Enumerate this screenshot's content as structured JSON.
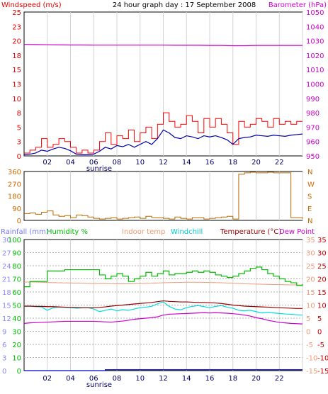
{
  "chart_data": [
    {
      "type": "line",
      "panel": "wind-pressure",
      "title": "24 hour graph day : 17 September 2008",
      "left_label": "Windspeed (m/s)",
      "right_label": "Barometer (hPa)",
      "x_ticks": [
        "02",
        "04",
        "06",
        "08",
        "10",
        "12",
        "14",
        "16",
        "18",
        "20",
        "22"
      ],
      "x_note": "sunrise",
      "y_left_ticks": [
        "0",
        "3",
        "5",
        "8",
        "10",
        "13",
        "15",
        "18",
        "20",
        "23",
        "25"
      ],
      "y_left_range": [
        0,
        25
      ],
      "y_right_ticks": [
        "950",
        "960",
        "970",
        "980",
        "990",
        "1000",
        "1010",
        "1020",
        "1030",
        "1040",
        "1050"
      ],
      "y_right_range": [
        950,
        1050
      ],
      "colors": {
        "left_label": "#dd0000",
        "right_label": "#cc00cc",
        "gust": "#ff0000",
        "wind": "#0000aa",
        "barometer": "#cc00cc"
      },
      "series": [
        {
          "name": "Barometer",
          "axis": "right",
          "x": [
            0.0,
            1.0,
            2.0,
            3.0,
            4.0,
            5.0,
            6.0,
            7.0,
            8.0,
            9.0,
            10.0,
            11.0,
            12.0,
            13.0,
            14.0,
            15.0,
            16.0,
            17.0,
            18.0,
            19.0,
            20.0,
            21.0,
            22.0,
            23.0,
            24.0
          ],
          "values": [
            1027.5,
            1027.4,
            1027.3,
            1027.2,
            1027.1,
            1027.1,
            1027.0,
            1027.0,
            1027.0,
            1027.0,
            1027.0,
            1027.0,
            1027.0,
            1026.9,
            1026.9,
            1026.9,
            1026.8,
            1026.8,
            1026.6,
            1026.6,
            1026.8,
            1026.8,
            1026.8,
            1026.8,
            1026.8
          ]
        },
        {
          "name": "Wind gust",
          "axis": "left",
          "x": [
            0.0,
            0.5,
            1.0,
            1.5,
            2.0,
            2.5,
            3.0,
            3.5,
            4.0,
            4.5,
            5.0,
            5.5,
            6.0,
            6.5,
            7.0,
            7.5,
            8.0,
            8.5,
            9.0,
            9.5,
            10.0,
            10.5,
            11.0,
            11.5,
            12.0,
            12.5,
            13.0,
            13.5,
            14.0,
            14.5,
            15.0,
            15.5,
            16.0,
            16.5,
            17.0,
            17.5,
            18.0,
            18.5,
            19.0,
            19.5,
            20.0,
            20.5,
            21.0,
            21.5,
            22.0,
            22.5,
            23.0,
            23.5,
            24.0
          ],
          "values": [
            0.5,
            1.0,
            1.5,
            3.0,
            1.5,
            2.0,
            3.0,
            2.5,
            1.5,
            0.5,
            1.0,
            0.5,
            1.0,
            2.5,
            4.0,
            2.0,
            3.5,
            3.0,
            4.5,
            2.5,
            4.0,
            5.0,
            3.0,
            5.5,
            7.5,
            6.0,
            5.0,
            5.5,
            7.0,
            6.0,
            4.0,
            6.5,
            5.0,
            6.5,
            5.5,
            4.0,
            2.0,
            6.0,
            5.0,
            5.5,
            6.5,
            6.0,
            5.0,
            6.5,
            5.5,
            6.0,
            5.5,
            6.0,
            6.0
          ]
        },
        {
          "name": "Wind average",
          "axis": "left",
          "x": [
            0.0,
            0.5,
            1.0,
            1.5,
            2.0,
            2.5,
            3.0,
            3.5,
            4.0,
            4.5,
            5.0,
            5.5,
            6.0,
            6.5,
            7.0,
            7.5,
            8.0,
            8.5,
            9.0,
            9.5,
            10.0,
            10.5,
            11.0,
            11.5,
            12.0,
            12.5,
            13.0,
            13.5,
            14.0,
            14.5,
            15.0,
            15.5,
            16.0,
            16.5,
            17.0,
            17.5,
            18.0,
            18.5,
            19.0,
            19.5,
            20.0,
            20.5,
            21.0,
            21.5,
            22.0,
            22.5,
            23.0,
            23.5,
            24.0
          ],
          "values": [
            0.2,
            0.3,
            0.5,
            1.0,
            0.8,
            1.2,
            1.5,
            1.3,
            0.9,
            0.3,
            0.2,
            0.2,
            0.3,
            0.8,
            1.5,
            1.2,
            1.8,
            1.6,
            2.0,
            1.5,
            2.0,
            2.5,
            2.0,
            3.0,
            4.5,
            4.0,
            3.2,
            3.0,
            3.5,
            3.3,
            3.0,
            3.5,
            3.3,
            3.5,
            3.2,
            2.8,
            2.0,
            3.0,
            3.2,
            3.3,
            3.6,
            3.5,
            3.4,
            3.6,
            3.5,
            3.4,
            3.6,
            3.7,
            3.8
          ]
        }
      ]
    },
    {
      "type": "line",
      "panel": "wind-direction",
      "y_left_ticks": [
        "0",
        "90",
        "180",
        "270",
        "360"
      ],
      "y_left_range": [
        0,
        360
      ],
      "y_right_ticks": [
        "N",
        "E",
        "S",
        "W",
        "N"
      ],
      "colors": {
        "direction": "#b86a00",
        "right_ticks": "#cc6600"
      },
      "series": [
        {
          "name": "Wind direction",
          "x": [
            0.0,
            0.5,
            1.0,
            1.5,
            2.0,
            2.5,
            3.0,
            3.5,
            4.0,
            4.5,
            5.0,
            5.5,
            6.0,
            6.5,
            7.0,
            7.5,
            8.0,
            8.5,
            9.0,
            9.5,
            10.0,
            10.5,
            11.0,
            11.5,
            12.0,
            12.5,
            13.0,
            13.5,
            14.0,
            14.5,
            15.0,
            15.5,
            16.0,
            16.5,
            17.0,
            17.5,
            18.0,
            18.5,
            19.0,
            19.5,
            20.0,
            20.5,
            21.0,
            21.5,
            22.0,
            22.5,
            23.0,
            23.5,
            24.0
          ],
          "values": [
            50,
            55,
            45,
            60,
            70,
            40,
            30,
            35,
            20,
            40,
            35,
            25,
            15,
            10,
            15,
            20,
            10,
            15,
            20,
            25,
            15,
            30,
            20,
            20,
            15,
            10,
            25,
            15,
            10,
            20,
            20,
            10,
            15,
            20,
            25,
            30,
            10,
            340,
            350,
            355,
            350,
            350,
            355,
            350,
            350,
            350,
            20,
            20,
            10
          ]
        }
      ]
    },
    {
      "type": "line",
      "panel": "temperature-humidity",
      "labels": [
        "Rainfall (mm)",
        "Humidity %",
        "Indoor temp",
        "Windchill",
        "Temperature (°C)",
        "Dew Point"
      ],
      "y_rain_ticks": [
        "0",
        "3",
        "6",
        "9",
        "12",
        "15",
        "18",
        "21",
        "24",
        "27",
        "30"
      ],
      "y_rain_range": [
        0,
        30
      ],
      "y_humidity_ticks": [
        "0",
        "10",
        "20",
        "30",
        "40",
        "50",
        "60",
        "70",
        "80",
        "90",
        "100"
      ],
      "y_humidity_range": [
        0,
        100
      ],
      "y_indoor_ticks": [
        "-15",
        "-10",
        "-5",
        "0",
        "5",
        "10",
        "15",
        "20",
        "25",
        "30",
        "35"
      ],
      "y_temp_ticks": [
        "-15",
        "-10",
        "-5",
        "0",
        "5",
        "10",
        "15",
        "20",
        "25",
        "30",
        "35"
      ],
      "y_temp_range": [
        -15,
        35
      ],
      "colors": {
        "rainfall": "#0000cc",
        "humidity": "#00bb00",
        "indoor": "#ee9977",
        "windchill": "#00dddd",
        "temperature": "#990000",
        "dewpoint": "#cc00cc",
        "rain_axis": "#8888ff",
        "indoor_axis": "#ee9977",
        "temp_axis": "#cc0000"
      },
      "series": [
        {
          "name": "Humidity %",
          "axis": "humidity",
          "x": [
            0.0,
            0.5,
            1.0,
            1.5,
            2.0,
            2.5,
            3.0,
            3.5,
            4.0,
            4.5,
            5.0,
            5.5,
            6.0,
            6.5,
            7.0,
            7.5,
            8.0,
            8.5,
            9.0,
            9.5,
            10.0,
            10.5,
            11.0,
            11.5,
            12.0,
            12.5,
            13.0,
            13.5,
            14.0,
            14.5,
            15.0,
            15.5,
            16.0,
            16.5,
            17.0,
            17.5,
            18.0,
            18.5,
            19.0,
            19.5,
            20.0,
            20.5,
            21.0,
            21.5,
            22.0,
            22.5,
            23.0,
            23.5,
            24.0
          ],
          "values": [
            64,
            68,
            68,
            68,
            76,
            76,
            76,
            77,
            77,
            77,
            77,
            77,
            77,
            73,
            70,
            72,
            74,
            72,
            68,
            70,
            72,
            75,
            72,
            74,
            76,
            73,
            74,
            74,
            75,
            76,
            75,
            76,
            75,
            73,
            72,
            71,
            72,
            74,
            76,
            78,
            79,
            77,
            74,
            72,
            70,
            68,
            67,
            65,
            66
          ]
        },
        {
          "name": "Indoor temp",
          "axis": "temp",
          "x": [
            0.0,
            1.0,
            2.0,
            3.0,
            4.0,
            5.0,
            6.0,
            7.0,
            8.0,
            9.0,
            10.0,
            11.0,
            12.0,
            13.0,
            14.0,
            15.0,
            16.0,
            17.0,
            18.0,
            19.0,
            20.0,
            21.0,
            22.0,
            23.0,
            24.0
          ],
          "values": [
            18.8,
            18.8,
            18.6,
            18.5,
            18.4,
            18.3,
            18.2,
            18.2,
            18.1,
            18.1,
            18.2,
            18.3,
            18.5,
            18.6,
            18.7,
            18.7,
            18.6,
            18.5,
            18.3,
            18.1,
            18.0,
            17.9,
            17.8,
            17.7,
            17.7
          ]
        },
        {
          "name": "Windchill",
          "axis": "temp",
          "x": [
            0.0,
            0.5,
            1.0,
            1.5,
            2.0,
            2.5,
            3.0,
            3.5,
            4.0,
            4.5,
            5.0,
            5.5,
            6.0,
            6.5,
            7.0,
            7.5,
            8.0,
            8.5,
            9.0,
            9.5,
            10.0,
            10.5,
            11.0,
            11.5,
            12.0,
            12.5,
            13.0,
            13.5,
            14.0,
            14.5,
            15.0,
            15.5,
            16.0,
            16.5,
            17.0,
            17.5,
            18.0,
            18.5,
            19.0,
            19.5,
            20.0,
            20.5,
            21.0,
            21.5,
            22.0,
            22.5,
            23.0,
            23.5,
            24.0
          ],
          "values": [
            9.5,
            9.6,
            9.4,
            9.3,
            8.0,
            9.0,
            9.2,
            9.1,
            9.0,
            8.8,
            8.9,
            9.0,
            8.5,
            7.5,
            8.0,
            8.5,
            7.8,
            8.2,
            8.0,
            8.5,
            9.0,
            9.2,
            9.5,
            10.5,
            11.2,
            9.5,
            8.5,
            8.2,
            9.0,
            9.5,
            9.8,
            9.4,
            9.0,
            9.5,
            9.8,
            9.2,
            8.8,
            8.0,
            7.8,
            8.0,
            7.5,
            7.0,
            7.2,
            7.0,
            6.8,
            6.6,
            6.5,
            6.3,
            6.2
          ]
        },
        {
          "name": "Temperature (°C)",
          "axis": "temp",
          "x": [
            0.0,
            0.5,
            1.0,
            1.5,
            2.0,
            2.5,
            3.0,
            3.5,
            4.0,
            4.5,
            5.0,
            5.5,
            6.0,
            6.5,
            7.0,
            7.5,
            8.0,
            8.5,
            9.0,
            9.5,
            10.0,
            10.5,
            11.0,
            11.5,
            12.0,
            12.5,
            13.0,
            13.5,
            14.0,
            14.5,
            15.0,
            15.5,
            16.0,
            16.5,
            17.0,
            17.5,
            18.0,
            18.5,
            19.0,
            19.5,
            20.0,
            20.5,
            21.0,
            21.5,
            22.0,
            22.5,
            23.0,
            23.5,
            24.0
          ],
          "values": [
            9.6,
            9.6,
            9.5,
            9.5,
            9.4,
            9.4,
            9.3,
            9.2,
            9.1,
            9.1,
            9.0,
            9.0,
            9.0,
            9.1,
            9.3,
            9.6,
            9.8,
            10.0,
            10.2,
            10.4,
            10.6,
            10.8,
            11.0,
            11.3,
            11.6,
            11.4,
            11.3,
            11.2,
            11.2,
            11.1,
            11.0,
            11.0,
            10.9,
            10.8,
            10.6,
            10.3,
            10.0,
            9.8,
            9.6,
            9.5,
            9.4,
            9.3,
            9.2,
            9.1,
            9.0,
            8.9,
            8.8,
            8.7,
            8.7
          ]
        },
        {
          "name": "Dew Point",
          "axis": "temp",
          "x": [
            0.0,
            0.5,
            1.0,
            1.5,
            2.0,
            2.5,
            3.0,
            3.5,
            4.0,
            4.5,
            5.0,
            5.5,
            6.0,
            6.5,
            7.0,
            7.5,
            8.0,
            8.5,
            9.0,
            9.5,
            10.0,
            10.5,
            11.0,
            11.5,
            12.0,
            12.5,
            13.0,
            13.5,
            14.0,
            14.5,
            15.0,
            15.5,
            16.0,
            16.5,
            17.0,
            17.5,
            18.0,
            18.5,
            19.0,
            19.5,
            20.0,
            20.5,
            21.0,
            21.5,
            22.0,
            22.5,
            23.0,
            23.5,
            24.0
          ],
          "values": [
            3.0,
            3.2,
            3.3,
            3.4,
            3.5,
            3.6,
            3.7,
            3.8,
            3.8,
            3.8,
            3.8,
            3.8,
            3.8,
            3.7,
            3.6,
            3.5,
            3.7,
            3.9,
            4.2,
            4.6,
            4.8,
            5.0,
            5.2,
            5.5,
            6.2,
            6.5,
            6.6,
            6.7,
            6.8,
            6.9,
            7.0,
            7.1,
            7.0,
            7.1,
            7.0,
            6.9,
            6.7,
            6.5,
            6.2,
            5.8,
            5.2,
            4.8,
            4.2,
            3.8,
            3.4,
            3.2,
            3.0,
            2.9,
            2.8
          ]
        },
        {
          "name": "Rainfall (mm)",
          "axis": "rain",
          "x": [
            0.0,
            6.5,
            7.0,
            24.0
          ],
          "values": [
            0.0,
            0.0,
            0.2,
            0.2
          ]
        }
      ]
    }
  ]
}
